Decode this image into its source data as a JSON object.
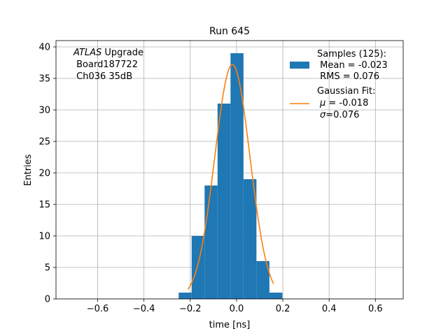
{
  "chart_data": {
    "type": "bar",
    "title": "Run 645",
    "xlabel": "time [ns]",
    "ylabel": "Entries",
    "xlim": [
      -0.78,
      0.72
    ],
    "ylim": [
      0,
      41
    ],
    "xticks": [
      -0.6,
      -0.4,
      -0.2,
      0.0,
      0.2,
      0.4,
      0.6
    ],
    "xtick_labels": [
      "−0.6",
      "−0.4",
      "−0.2",
      "0.0",
      "0.2",
      "0.4",
      "0.6"
    ],
    "yticks": [
      0,
      5,
      10,
      15,
      20,
      25,
      30,
      35,
      40
    ],
    "ytick_labels": [
      "0",
      "5",
      "10",
      "15",
      "20",
      "25",
      "30",
      "35",
      "40"
    ],
    "grid": true,
    "annotation": {
      "italic": "ATLAS",
      "rest": " Upgrade",
      "line2": " Board187722",
      "line3": " Ch036 35dB"
    },
    "histogram": {
      "bin_edges": [
        -0.25,
        -0.194,
        -0.138,
        -0.082,
        -0.026,
        0.03,
        0.086,
        0.142,
        0.198
      ],
      "values": [
        1,
        10,
        18,
        31,
        39,
        19,
        6,
        1
      ],
      "color": "#1f77b4"
    },
    "fit": {
      "mu": -0.018,
      "sigma": 0.076,
      "amplitude": 37.2,
      "x_range": [
        -0.21,
        0.16
      ],
      "color": "#ff7f0e"
    },
    "legend": {
      "placement": "top-right",
      "samples_title": "Samples (125):",
      "samples_mean": " Mean = -0.023",
      "samples_rms": " RMS = 0.076",
      "fit_title": "Gaussian Fit:",
      "fit_mu_symbol": "μ",
      "fit_mu_value": " = -0.018",
      "fit_sigma_symbol": "σ",
      "fit_sigma_value": "=0.076"
    }
  }
}
